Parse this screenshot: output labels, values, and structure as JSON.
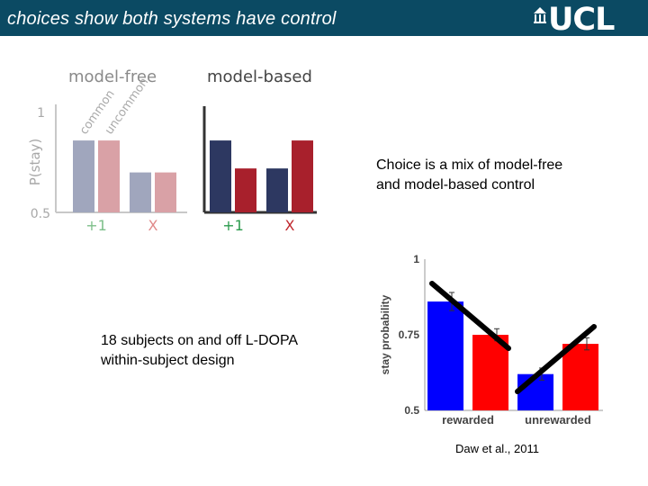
{
  "header": {
    "title": "choices show both systems have control",
    "logo_text": "UCL"
  },
  "body_text": {
    "choice_mix": [
      "Choice is a mix of model-free",
      "and model-based control"
    ],
    "subjects": [
      "18 subjects on and off L-DOPA",
      "within-subject design"
    ],
    "citation": "Daw et al., 2011"
  },
  "colors": {
    "header_bg": "#0b4a63",
    "mf_common": "#a0a6bd",
    "mf_uncommon": "#d9a1a6",
    "mb_common": "#2d3861",
    "mb_uncommon": "#a8202c",
    "reward_label": "#7dbf8a",
    "noreward_label": "#e08a8a",
    "stay_common": "#0000ff",
    "stay_uncommon": "#ff0000"
  },
  "chart_data": [
    {
      "type": "bar",
      "panels": [
        {
          "title": "model-free",
          "categories": [
            "+1",
            "+1",
            "X",
            "X"
          ],
          "values": [
            0.86,
            0.86,
            0.7,
            0.7
          ],
          "bar_labels": [
            "common",
            "uncommon",
            "",
            ""
          ]
        },
        {
          "title": "model-based",
          "categories": [
            "+1",
            "+1",
            "X",
            "X"
          ],
          "values": [
            0.86,
            0.72,
            0.72,
            0.86
          ],
          "bar_labels": [
            "",
            "",
            "",
            ""
          ]
        }
      ],
      "ylabel": "P(stay)",
      "yticks": [
        "1",
        "0.5"
      ],
      "ylim": [
        0.5,
        1
      ]
    },
    {
      "type": "bar",
      "categories": [
        "rewarded",
        "unrewarded"
      ],
      "series": [
        {
          "values": [
            0.86,
            0.62
          ],
          "errors": [
            0.03,
            0.02
          ]
        },
        {
          "values": [
            0.75,
            0.72
          ],
          "errors": [
            0.02,
            0.02
          ]
        }
      ],
      "ylabel": "stay probability",
      "yticks": [
        "1",
        "0.75",
        "0.5"
      ],
      "ylim": [
        0.5,
        1
      ]
    }
  ]
}
